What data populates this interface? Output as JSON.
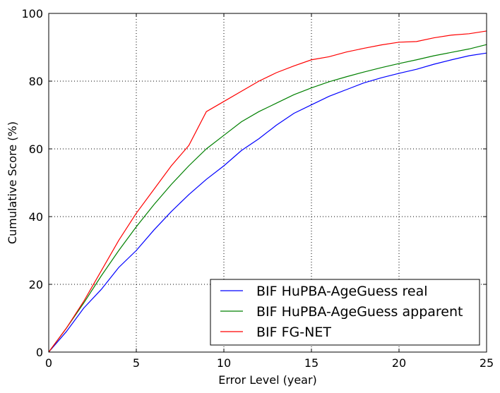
{
  "chart_data": {
    "type": "line",
    "title": "",
    "xlabel": "Error Level (year)",
    "ylabel": "Cumulative Score (%)",
    "xlim": [
      0,
      25
    ],
    "ylim": [
      0,
      100
    ],
    "xticks": [
      0,
      5,
      10,
      15,
      20,
      25
    ],
    "yticks": [
      0,
      20,
      40,
      60,
      80,
      100
    ],
    "grid": true,
    "legend_position": "lower-right",
    "x": [
      0,
      1,
      2,
      3,
      4,
      5,
      6,
      7,
      8,
      9,
      10,
      11,
      12,
      13,
      14,
      15,
      16,
      17,
      18,
      19,
      20,
      21,
      22,
      23,
      24,
      25
    ],
    "series": [
      {
        "name": "BIF HuPBA-AgeGuess real",
        "color": "#0000ff",
        "values": [
          0,
          6,
          13,
          18.5,
          25,
          30,
          36,
          41.5,
          46.5,
          51,
          55,
          59.5,
          63,
          67,
          70.5,
          73,
          75.5,
          77.5,
          79.5,
          81,
          82.3,
          83.5,
          85,
          86.3,
          87.5,
          88.3
        ]
      },
      {
        "name": "BIF HuPBA-AgeGuess apparent",
        "color": "#008000",
        "values": [
          0,
          7,
          14.5,
          22.5,
          30,
          37,
          43.5,
          49.5,
          55,
          60,
          64,
          68,
          71,
          73.5,
          76,
          78,
          79.8,
          81.3,
          82.7,
          84,
          85.2,
          86.3,
          87.5,
          88.5,
          89.5,
          90.8
        ]
      },
      {
        "name": "BIF FG-NET",
        "color": "#ff0000",
        "values": [
          0,
          7,
          15,
          24,
          33,
          41,
          48,
          55,
          61,
          71,
          74,
          77,
          80,
          82.5,
          84.5,
          86.3,
          87.2,
          88.6,
          89.7,
          90.7,
          91.5,
          91.7,
          92.8,
          93.6,
          94,
          94.8
        ]
      }
    ]
  }
}
